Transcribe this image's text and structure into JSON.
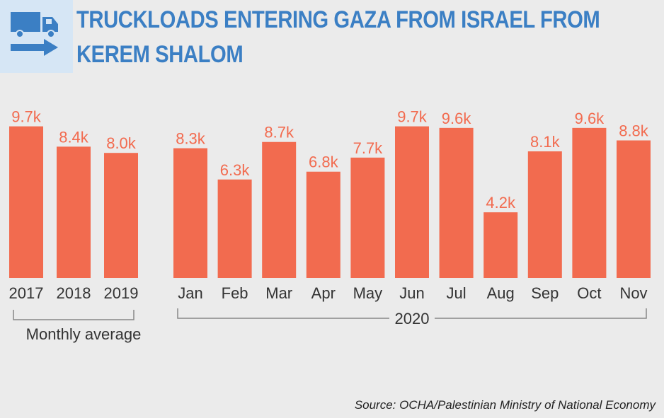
{
  "title_lines": [
    "TRUCKLOADS ENTERING GAZA FROM ISRAEL FROM",
    "KEREM SHALOM"
  ],
  "icon": "truck-with-arrow-icon",
  "colors": {
    "bar": "#f26b4f",
    "label": "#f26b4f",
    "title": "#3b7fc4",
    "icon": "#3b7fc4",
    "icon_bg": "#d6e6f5",
    "background": "#ebebeb",
    "axis_text": "#333333",
    "bracket": "#888888"
  },
  "chart_data": {
    "type": "bar",
    "title": "TRUCKLOADS ENTERING GAZA FROM ISRAEL FROM KEREM SHALOM",
    "groups": [
      {
        "label": "Monthly average",
        "categories": [
          "2017",
          "2018",
          "2019"
        ],
        "values": [
          9.7,
          8.4,
          8.0
        ],
        "value_labels": [
          "9.7k",
          "8.4k",
          "8.0k"
        ]
      },
      {
        "label": "2020",
        "categories": [
          "Jan",
          "Feb",
          "Mar",
          "Apr",
          "May",
          "Jun",
          "Jul",
          "Aug",
          "Sep",
          "Oct",
          "Nov"
        ],
        "values": [
          8.3,
          6.3,
          8.7,
          6.8,
          7.7,
          9.7,
          9.6,
          4.2,
          8.1,
          9.6,
          8.8
        ],
        "value_labels": [
          "8.3k",
          "6.3k",
          "8.7k",
          "6.8k",
          "7.7k",
          "9.7k",
          "9.6k",
          "4.2k",
          "8.1k",
          "9.6k",
          "8.8k"
        ]
      }
    ],
    "value_unit": "thousand truckloads",
    "ylim": [
      0,
      10
    ],
    "grid": false,
    "legend": "none"
  },
  "source": "Source: OCHA/Palestinian Ministry of National Economy"
}
